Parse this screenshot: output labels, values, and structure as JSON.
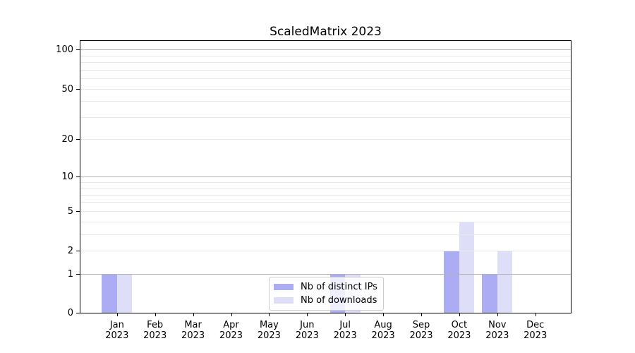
{
  "chart_data": {
    "type": "bar",
    "title": "ScaledMatrix 2023",
    "categories": [
      {
        "month": "Jan",
        "year": "2023"
      },
      {
        "month": "Feb",
        "year": "2023"
      },
      {
        "month": "Mar",
        "year": "2023"
      },
      {
        "month": "Apr",
        "year": "2023"
      },
      {
        "month": "May",
        "year": "2023"
      },
      {
        "month": "Jun",
        "year": "2023"
      },
      {
        "month": "Jul",
        "year": "2023"
      },
      {
        "month": "Aug",
        "year": "2023"
      },
      {
        "month": "Sep",
        "year": "2023"
      },
      {
        "month": "Oct",
        "year": "2023"
      },
      {
        "month": "Nov",
        "year": "2023"
      },
      {
        "month": "Dec",
        "year": "2023"
      }
    ],
    "series": [
      {
        "name": "Nb of distinct IPs",
        "color": "#acacf5",
        "values": [
          1,
          0,
          0,
          0,
          0,
          0,
          1,
          0,
          0,
          2,
          1,
          0
        ]
      },
      {
        "name": "Nb of downloads",
        "color": "#dedef9",
        "values": [
          1,
          0,
          0,
          0,
          0,
          0,
          1,
          0,
          0,
          4,
          2,
          0
        ]
      }
    ],
    "yaxis": {
      "scale": "log1p",
      "ticks": [
        0,
        1,
        2,
        5,
        10,
        20,
        50,
        100
      ],
      "max": 118,
      "major_gridlines": [
        1,
        10,
        100
      ],
      "minor_gridlines": [
        2,
        3,
        4,
        5,
        6,
        7,
        8,
        9,
        20,
        30,
        40,
        50,
        60,
        70,
        80,
        90
      ]
    },
    "legend": {
      "position": "lower center"
    },
    "grid": "on"
  },
  "colors": {
    "major_grid": "#b2b2b2",
    "minor_grid": "#e9e9e9",
    "spine": "#000000",
    "legend_border": "#cccccc"
  }
}
